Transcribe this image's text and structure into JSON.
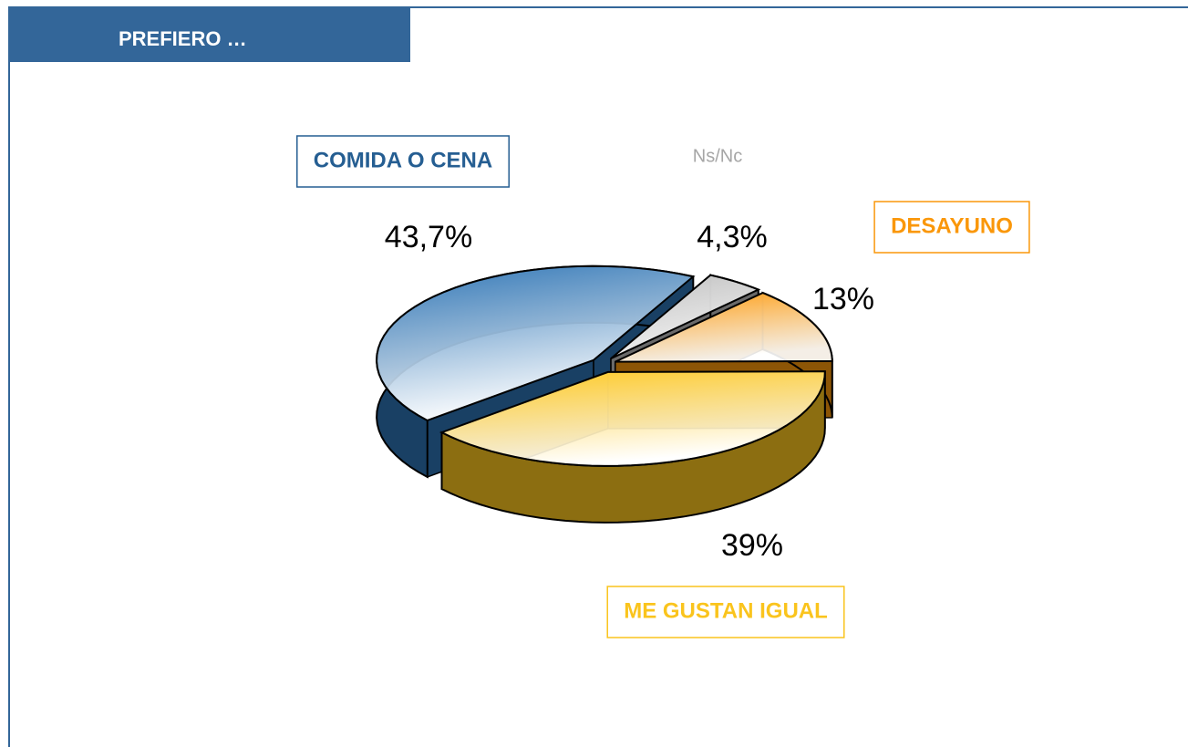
{
  "chart_data": {
    "type": "pie",
    "title": "PREFIERO …",
    "categories": [
      "COMIDA O CENA",
      "Ns/Nc",
      "DESAYUNO",
      "ME GUSTAN IGUAL"
    ],
    "values": [
      43.7,
      4.3,
      13,
      39
    ],
    "value_labels": [
      "43,7%",
      "4,3%",
      "13%",
      "39%"
    ],
    "colors": [
      "#2e75b6",
      "#c0c0c0",
      "#ff9a0a",
      "#ffc81e"
    ]
  }
}
